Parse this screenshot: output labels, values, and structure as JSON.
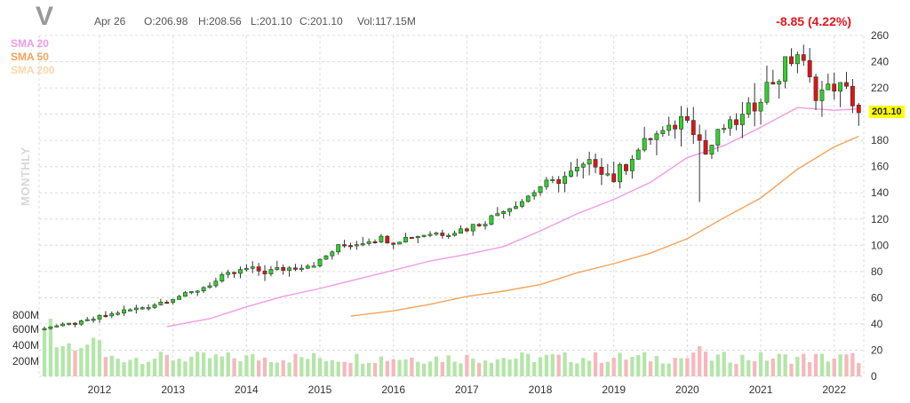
{
  "header": {
    "ticker": "V",
    "date": "Apr 26",
    "open": "O:206.98",
    "high": "H:208.56",
    "low": "L:201.10",
    "close": "C:201.10",
    "volume": "Vol:117.15M",
    "change": "-8.85 (4.22%)",
    "timeframe": "MONTHLY",
    "last_price": "201.10"
  },
  "legend": {
    "sma20": "SMA 20",
    "sma50": "SMA 50",
    "sma200": "SMA 200"
  },
  "colors": {
    "up": "#2ed12a",
    "down": "#e01313",
    "sma20": "#f29ae6",
    "sma50": "#f5a25a",
    "sma200": "#f9d8a8",
    "vol_up": "#b3e6a8",
    "vol_down": "#f6b8bd",
    "last_price_bg": "#ffff00"
  },
  "chart_data": {
    "type": "candlestick",
    "price_axis": {
      "min": 0,
      "max": 260,
      "ticks": [
        "0",
        "20",
        "40",
        "60",
        "80",
        "100",
        "120",
        "140",
        "160",
        "180",
        "200",
        "220",
        "240",
        "260"
      ]
    },
    "volume_axis": {
      "ticks": [
        "200M",
        "400M",
        "600M",
        "800M"
      ]
    },
    "x_ticks": [
      "2012",
      "2013",
      "2014",
      "2015",
      "2016",
      "2017",
      "2018",
      "2019",
      "2020",
      "2021",
      "2022"
    ],
    "x_range": [
      2011.25,
      2022.33
    ],
    "price_path": [
      [
        2011.25,
        37.5
      ],
      [
        2011.5,
        39
      ],
      [
        2011.75,
        41.5
      ],
      [
        2012.0,
        45
      ],
      [
        2012.25,
        49
      ],
      [
        2012.5,
        51.5
      ],
      [
        2012.75,
        55
      ],
      [
        2013.0,
        60
      ],
      [
        2013.25,
        64
      ],
      [
        2013.5,
        70
      ],
      [
        2013.75,
        77
      ],
      [
        2014.0,
        82
      ],
      [
        2014.25,
        80
      ],
      [
        2014.5,
        82
      ],
      [
        2014.75,
        84
      ],
      [
        2015.0,
        88
      ],
      [
        2015.25,
        99
      ],
      [
        2015.5,
        102
      ],
      [
        2015.75,
        106
      ],
      [
        2016.0,
        103
      ],
      [
        2016.25,
        107
      ],
      [
        2016.5,
        109
      ],
      [
        2016.75,
        110
      ],
      [
        2017.0,
        113
      ],
      [
        2017.25,
        118
      ],
      [
        2017.5,
        128
      ],
      [
        2017.75,
        134
      ],
      [
        2018.0,
        145
      ],
      [
        2018.25,
        150
      ],
      [
        2018.5,
        157
      ],
      [
        2018.75,
        162
      ],
      [
        2019.0,
        151
      ],
      [
        2019.25,
        168
      ],
      [
        2019.5,
        182
      ],
      [
        2019.75,
        188
      ],
      [
        2020.0,
        200
      ],
      [
        2020.25,
        170
      ],
      [
        2020.5,
        190
      ],
      [
        2020.75,
        197
      ],
      [
        2021.0,
        215
      ],
      [
        2021.25,
        230
      ],
      [
        2021.5,
        246
      ],
      [
        2021.75,
        215
      ],
      [
        2022.0,
        222
      ],
      [
        2022.17,
        216
      ],
      [
        2022.33,
        201.1
      ]
    ],
    "sma20_path": [
      [
        2012.92,
        38
      ],
      [
        2013.5,
        44
      ],
      [
        2014.0,
        53
      ],
      [
        2014.5,
        61
      ],
      [
        2015.0,
        67
      ],
      [
        2015.5,
        74
      ],
      [
        2016.0,
        81
      ],
      [
        2016.5,
        88
      ],
      [
        2017.0,
        93
      ],
      [
        2017.5,
        99
      ],
      [
        2018.0,
        111
      ],
      [
        2018.5,
        124
      ],
      [
        2019.0,
        135
      ],
      [
        2019.5,
        148
      ],
      [
        2020.0,
        167
      ],
      [
        2020.5,
        176
      ],
      [
        2021.0,
        190
      ],
      [
        2021.5,
        205
      ],
      [
        2022.0,
        203
      ],
      [
        2022.33,
        204
      ]
    ],
    "sma50_path": [
      [
        2015.42,
        46
      ],
      [
        2016.0,
        50
      ],
      [
        2016.5,
        55
      ],
      [
        2017.0,
        61
      ],
      [
        2017.5,
        65
      ],
      [
        2018.0,
        70
      ],
      [
        2018.5,
        79
      ],
      [
        2019.0,
        86
      ],
      [
        2019.5,
        94
      ],
      [
        2020.0,
        105
      ],
      [
        2020.5,
        121
      ],
      [
        2021.0,
        136
      ],
      [
        2021.5,
        158
      ],
      [
        2022.0,
        175
      ],
      [
        2022.33,
        183
      ]
    ],
    "last_close": 201.1,
    "last_candle": {
      "open": 206.98,
      "high": 208.56,
      "low": 201.1,
      "close": 201.1
    }
  }
}
